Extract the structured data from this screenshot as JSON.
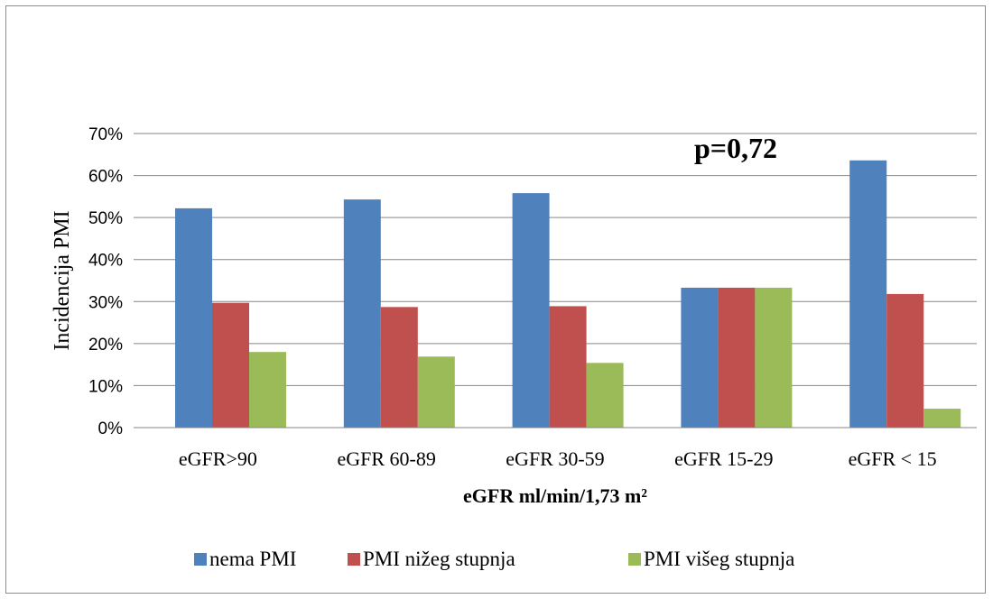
{
  "chart_data": {
    "type": "bar",
    "title": "",
    "xlabel": "eGFR ml/min/1,73 m²",
    "ylabel": "Incidencija PMI",
    "categories": [
      "eGFR>90",
      "eGFR 60-89",
      "eGFR 30-59",
      "eGFR 15-29",
      "eGFR < 15"
    ],
    "series": [
      {
        "name": "nema PMI",
        "color": "#4f81bd",
        "values": [
          52.2,
          54.3,
          55.8,
          33.3,
          63.6
        ]
      },
      {
        "name": "PMI nižeg stupnja",
        "color": "#c0504d",
        "values": [
          29.7,
          28.7,
          28.9,
          33.3,
          31.8
        ]
      },
      {
        "name": "PMI višeg stupnja",
        "color": "#9bbb59",
        "values": [
          18.0,
          16.9,
          15.4,
          33.3,
          4.5
        ]
      }
    ],
    "ylim": [
      0,
      70
    ],
    "yticks": [
      "0%",
      "10%",
      "20%",
      "30%",
      "40%",
      "50%",
      "60%",
      "70%"
    ],
    "grid": true,
    "legend_position": "bottom",
    "annotation": "p=0,72"
  }
}
